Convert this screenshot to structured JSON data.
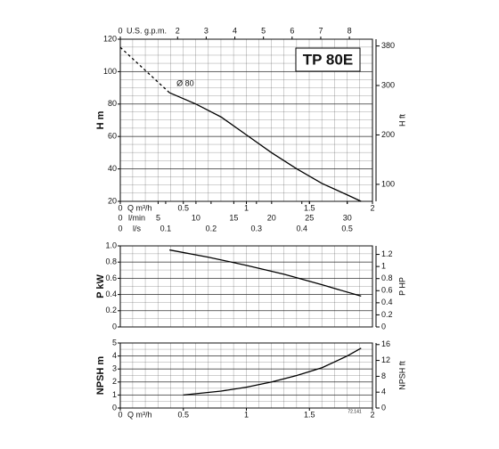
{
  "chart_data": [
    {
      "type": "line",
      "title": "TP 80E",
      "xlabel": "Q m³/h",
      "xlim": [
        0,
        2
      ],
      "xticks": [
        0,
        0.5,
        1,
        1.5,
        2
      ],
      "x2label": "U.S. g.p.m.",
      "x2lim": [
        0,
        8.806
      ],
      "x2ticks": [
        0,
        2,
        3,
        4,
        5,
        6,
        7,
        8
      ],
      "x3label": "l/min",
      "x3lim": [
        0,
        33.33
      ],
      "x3ticks": [
        0,
        5,
        10,
        15,
        20,
        25,
        30
      ],
      "x4label": "l/s",
      "x4lim": [
        0,
        0.5556
      ],
      "x4ticks": [
        0,
        0.1,
        0.2,
        0.3,
        0.4,
        0.5
      ],
      "ylabel": "H m",
      "ylim": [
        20,
        120
      ],
      "yticks": [
        20,
        40,
        60,
        80,
        100,
        120
      ],
      "y2label": "H ft",
      "y2lim": [
        65.62,
        393.7
      ],
      "y2ticks": [
        100,
        200,
        300,
        380
      ],
      "grid": true,
      "series": [
        {
          "color": "#000000",
          "dashed": true,
          "x": [
            0,
            0.39
          ],
          "values": [
            115,
            87
          ]
        },
        {
          "name": "Ø 80",
          "color": "#000000",
          "x": [
            0.39,
            0.6,
            0.8,
            1.0,
            1.2,
            1.4,
            1.6,
            1.8,
            1.91
          ],
          "values": [
            87,
            80,
            72,
            61,
            50,
            40,
            31,
            24,
            20
          ]
        }
      ]
    },
    {
      "type": "line",
      "xlim": [
        0,
        2
      ],
      "ylabel": "P kW",
      "ylim": [
        0,
        1
      ],
      "yticks": [
        0,
        0.2,
        0.4,
        0.6,
        0.8,
        {
          "value": 1,
          "label": "1.0"
        }
      ],
      "y2label": "P HP",
      "y2lim": [
        0,
        1.341
      ],
      "y2ticks": [
        0,
        0.2,
        0.4,
        0.6,
        0.8,
        1,
        1.2
      ],
      "grid": true,
      "series": [
        {
          "color": "#000000",
          "x": [
            0.39,
            0.7,
            1.0,
            1.3,
            1.6,
            1.91
          ],
          "values": [
            0.95,
            0.86,
            0.76,
            0.65,
            0.52,
            0.38
          ]
        }
      ]
    },
    {
      "type": "line",
      "xlabel": "Q m³/h",
      "xlim": [
        0,
        2
      ],
      "xticks": [
        0,
        0.5,
        1,
        1.5,
        2
      ],
      "ylabel": "NPSH m",
      "ylim": [
        0,
        5
      ],
      "yticks": [
        0,
        1,
        2,
        3,
        4,
        5
      ],
      "y2label": "NPSH ft",
      "y2lim": [
        0,
        16.4
      ],
      "y2ticks": [
        0,
        4,
        8,
        12,
        16
      ],
      "grid": true,
      "note": "72.141",
      "series": [
        {
          "color": "#000000",
          "x": [
            0.5,
            0.8,
            1.0,
            1.2,
            1.4,
            1.6,
            1.8,
            1.91
          ],
          "values": [
            1.0,
            1.3,
            1.6,
            2.0,
            2.5,
            3.1,
            4.0,
            4.6
          ]
        }
      ]
    }
  ]
}
